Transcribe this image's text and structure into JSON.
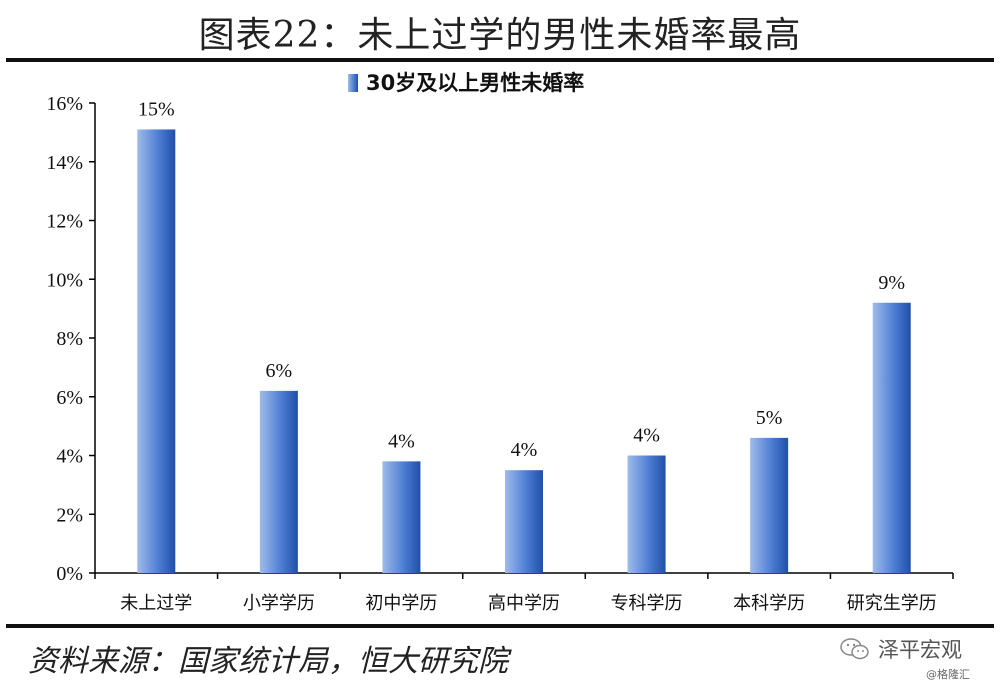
{
  "title": "图表22：未上过学的男性未婚率最高",
  "source": "资料来源：国家统计局，恒大研究院",
  "brand": {
    "name": "泽平宏观",
    "icon": "wechat-icon"
  },
  "watermark": "@格隆汇",
  "colors": {
    "bar_light": "#9fbbe8",
    "bar_mid": "#4f7fd4",
    "bar_dark": "#1f4fa8",
    "axis": "#000000"
  },
  "chart_data": {
    "type": "bar",
    "categories": [
      "未上过学",
      "小学学历",
      "初中学历",
      "高中学历",
      "专科学历",
      "本科学历",
      "研究生学历"
    ],
    "series": [
      {
        "name": "30岁及以上男性未婚率",
        "values": [
          0.151,
          0.062,
          0.038,
          0.035,
          0.04,
          0.046,
          0.092
        ]
      }
    ],
    "data_labels": [
      "15%",
      "6%",
      "4%",
      "4%",
      "4%",
      "5%",
      "9%"
    ],
    "ylim": [
      0,
      0.16
    ],
    "y_ticks": [
      0,
      0.02,
      0.04,
      0.06,
      0.08,
      0.1,
      0.12,
      0.14,
      0.16
    ],
    "y_tick_labels": [
      "0%",
      "2%",
      "4%",
      "6%",
      "8%",
      "10%",
      "12%",
      "14%",
      "16%"
    ],
    "legend_position": "top-center",
    "grid": false,
    "xlabel": "",
    "ylabel": ""
  }
}
